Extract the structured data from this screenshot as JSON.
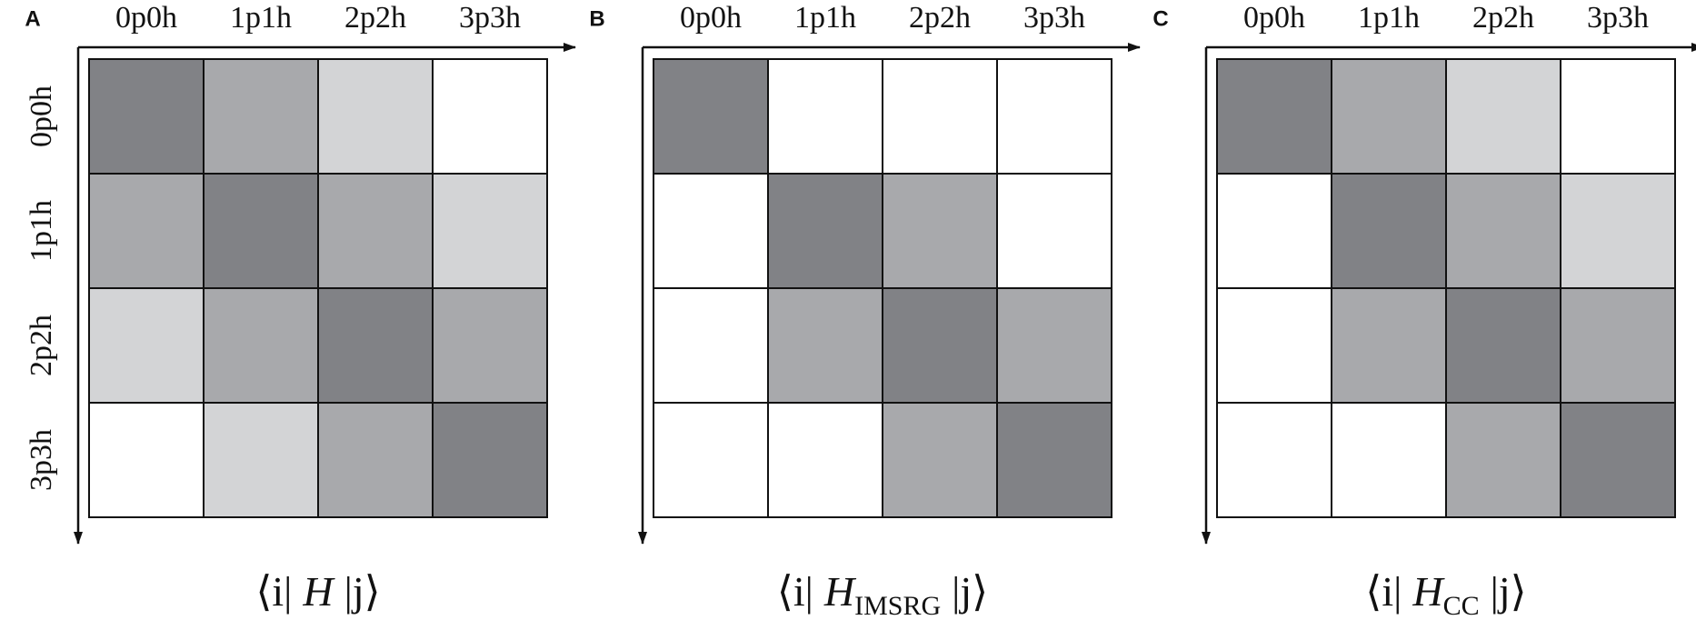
{
  "panels": [
    {
      "letter": "A",
      "columns": [
        "0p0h",
        "1p1h",
        "2p2h",
        "3p3h"
      ],
      "rows": [
        "0p0h",
        "1p1h",
        "2p2h",
        "3p3h"
      ],
      "cells": [
        [
          "#818286",
          "#a8a9ac",
          "#d3d4d6",
          "#ffffff"
        ],
        [
          "#a8a9ac",
          "#818286",
          "#a8a9ac",
          "#d3d4d6"
        ],
        [
          "#d3d4d6",
          "#a8a9ac",
          "#818286",
          "#a8a9ac"
        ],
        [
          "#ffffff",
          "#d3d4d6",
          "#a8a9ac",
          "#818286"
        ]
      ],
      "caption": {
        "bra": "⟨i|",
        "operator": "H",
        "ket": "|j⟩"
      }
    },
    {
      "letter": "B",
      "columns": [
        "0p0h",
        "1p1h",
        "2p2h",
        "3p3h"
      ],
      "cells": [
        [
          "#818286",
          "#ffffff",
          "#ffffff",
          "#ffffff"
        ],
        [
          "#ffffff",
          "#818286",
          "#a8a9ac",
          "#ffffff"
        ],
        [
          "#ffffff",
          "#a8a9ac",
          "#818286",
          "#a8a9ac"
        ],
        [
          "#ffffff",
          "#ffffff",
          "#a8a9ac",
          "#818286"
        ]
      ],
      "caption": {
        "bra": "⟨i|",
        "operator": "H",
        "subscript": "IMSRG",
        "ket": "|j⟩"
      }
    },
    {
      "letter": "C",
      "columns": [
        "0p0h",
        "1p1h",
        "2p2h",
        "3p3h"
      ],
      "cells": [
        [
          "#818286",
          "#a8a9ac",
          "#d3d4d6",
          "#ffffff"
        ],
        [
          "#ffffff",
          "#818286",
          "#a8a9ac",
          "#d3d4d6"
        ],
        [
          "#ffffff",
          "#a8a9ac",
          "#818286",
          "#a8a9ac"
        ],
        [
          "#ffffff",
          "#ffffff",
          "#a8a9ac",
          "#818286"
        ]
      ],
      "caption": {
        "bra": "⟨i|",
        "operator": "H",
        "subscript": "CC",
        "ket": "|j⟩"
      }
    }
  ]
}
